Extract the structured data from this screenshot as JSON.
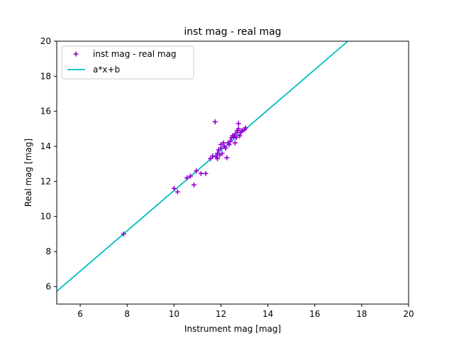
{
  "chart_data": {
    "type": "scatter",
    "title": "inst mag - real mag",
    "xlabel": "Instrument mag [mag]",
    "ylabel": "Real mag [mag]",
    "xlim": [
      5,
      20
    ],
    "ylim": [
      5,
      20
    ],
    "xticks": [
      6,
      8,
      10,
      12,
      14,
      16,
      18,
      20
    ],
    "yticks": [
      6,
      8,
      10,
      12,
      14,
      16,
      18,
      20
    ],
    "grid": false,
    "legend_placement": "top-left",
    "series": [
      {
        "name": "inst mag - real mag",
        "kind": "scatter",
        "marker": "plus",
        "color": "#9400d3",
        "x": [
          7.85,
          10.0,
          10.15,
          10.55,
          10.7,
          10.85,
          10.95,
          11.15,
          11.35,
          11.55,
          11.65,
          11.75,
          11.8,
          11.85,
          11.85,
          11.9,
          11.95,
          12.0,
          12.0,
          12.05,
          12.1,
          12.15,
          12.2,
          12.25,
          12.3,
          12.35,
          12.4,
          12.45,
          12.5,
          12.55,
          12.6,
          12.6,
          12.65,
          12.7,
          12.7,
          12.75,
          12.75,
          12.8,
          12.85,
          12.9,
          13.0,
          13.05
        ],
        "y": [
          9.0,
          11.6,
          11.4,
          12.2,
          12.3,
          11.8,
          12.6,
          12.45,
          12.45,
          13.3,
          13.45,
          15.4,
          13.4,
          13.3,
          13.6,
          13.8,
          13.5,
          13.9,
          14.1,
          13.6,
          14.2,
          14.0,
          13.9,
          13.35,
          14.2,
          14.1,
          14.3,
          14.5,
          14.6,
          14.55,
          14.2,
          14.7,
          14.5,
          14.9,
          14.8,
          15.0,
          15.3,
          14.6,
          14.8,
          14.9,
          14.95,
          15.05
        ]
      },
      {
        "name": "a*x+b",
        "kind": "line",
        "color": "#00bfbf",
        "x": [
          5,
          17.41
        ],
        "y": [
          5.73,
          20
        ]
      }
    ]
  }
}
